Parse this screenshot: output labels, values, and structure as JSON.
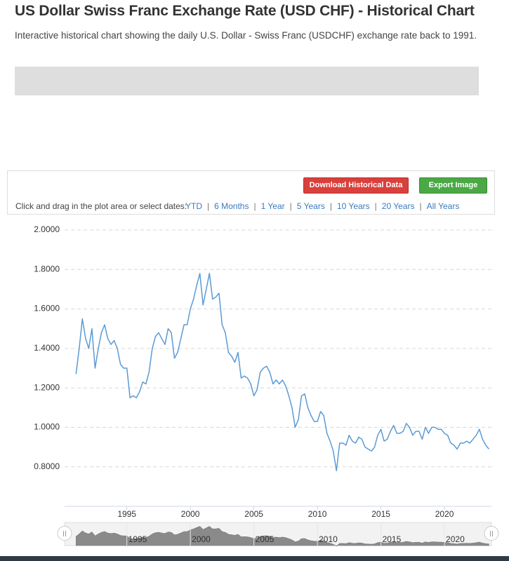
{
  "header": {
    "title": "US Dollar Swiss Franc Exchange Rate (USD CHF) - Historical Chart",
    "subtitle": "Interactive historical chart showing the daily U.S. Dollar - Swiss Franc (USDCHF) exchange rate back to 1991."
  },
  "toolbar": {
    "buttons": [
      "Download Historical Data",
      "Export Image"
    ],
    "prompt": "Click and drag in the plot area or select dates:",
    "ranges": [
      "YTD",
      "6 Months",
      "1 Year",
      "5 Years",
      "10 Years",
      "20 Years",
      "All Years"
    ]
  },
  "chart_data": {
    "type": "line",
    "color": "#5b9bd5",
    "grid": true,
    "xlim": [
      1990.1,
      2023.7
    ],
    "xticks": [
      1995,
      2000,
      2005,
      2010,
      2015,
      2020
    ],
    "ylim": [
      0.6,
      2.0
    ],
    "yticks": [
      {
        "value": 0.8,
        "label": "0.8000"
      },
      {
        "value": 1.0,
        "label": "1.0000"
      },
      {
        "value": 1.2,
        "label": "1.2000"
      },
      {
        "value": 1.4,
        "label": "1.4000"
      },
      {
        "value": 1.6,
        "label": "1.6000"
      },
      {
        "value": 1.8,
        "label": "1.8000"
      },
      {
        "value": 2.0,
        "label": "2.0000"
      }
    ],
    "x": [
      1991,
      1991.25,
      1991.5,
      1991.75,
      1992,
      1992.25,
      1992.5,
      1992.75,
      1993,
      1993.25,
      1993.5,
      1993.75,
      1994,
      1994.25,
      1994.5,
      1994.75,
      1995,
      1995.25,
      1995.5,
      1995.75,
      1996,
      1996.25,
      1996.5,
      1996.75,
      1997,
      1997.25,
      1997.5,
      1997.75,
      1998,
      1998.25,
      1998.5,
      1998.75,
      1999,
      1999.25,
      1999.5,
      1999.75,
      2000,
      2000.25,
      2000.5,
      2000.75,
      2001,
      2001.25,
      2001.5,
      2001.75,
      2002,
      2002.25,
      2002.5,
      2002.75,
      2003,
      2003.25,
      2003.5,
      2003.75,
      2004,
      2004.25,
      2004.5,
      2004.75,
      2005,
      2005.25,
      2005.5,
      2005.75,
      2006,
      2006.25,
      2006.5,
      2006.75,
      2007,
      2007.25,
      2007.5,
      2007.75,
      2008,
      2008.25,
      2008.5,
      2008.75,
      2009,
      2009.25,
      2009.5,
      2009.75,
      2010,
      2010.25,
      2010.5,
      2010.75,
      2011,
      2011.25,
      2011.5,
      2011.75,
      2012,
      2012.25,
      2012.5,
      2012.75,
      2013,
      2013.25,
      2013.5,
      2013.75,
      2014,
      2014.25,
      2014.5,
      2014.75,
      2015,
      2015.25,
      2015.5,
      2015.75,
      2016,
      2016.25,
      2016.5,
      2016.75,
      2017,
      2017.25,
      2017.5,
      2017.75,
      2018,
      2018.25,
      2018.5,
      2018.75,
      2019,
      2019.25,
      2019.5,
      2019.75,
      2020,
      2020.25,
      2020.5,
      2020.75,
      2021,
      2021.25,
      2021.5,
      2021.75,
      2022,
      2022.25,
      2022.5,
      2022.75,
      2023,
      2023.25,
      2023.5
    ],
    "values": [
      1.27,
      1.4,
      1.55,
      1.45,
      1.4,
      1.5,
      1.3,
      1.4,
      1.48,
      1.52,
      1.45,
      1.42,
      1.44,
      1.4,
      1.32,
      1.3,
      1.3,
      1.15,
      1.16,
      1.15,
      1.18,
      1.23,
      1.22,
      1.28,
      1.4,
      1.46,
      1.48,
      1.45,
      1.42,
      1.5,
      1.48,
      1.35,
      1.38,
      1.45,
      1.52,
      1.52,
      1.6,
      1.65,
      1.72,
      1.78,
      1.62,
      1.7,
      1.78,
      1.65,
      1.66,
      1.68,
      1.52,
      1.48,
      1.38,
      1.36,
      1.33,
      1.38,
      1.25,
      1.26,
      1.25,
      1.22,
      1.16,
      1.19,
      1.28,
      1.3,
      1.31,
      1.28,
      1.22,
      1.24,
      1.22,
      1.24,
      1.21,
      1.16,
      1.1,
      1.0,
      1.04,
      1.16,
      1.17,
      1.1,
      1.06,
      1.03,
      1.03,
      1.08,
      1.06,
      0.97,
      0.93,
      0.88,
      0.78,
      0.92,
      0.92,
      0.91,
      0.96,
      0.93,
      0.92,
      0.95,
      0.94,
      0.9,
      0.89,
      0.88,
      0.9,
      0.96,
      0.99,
      0.93,
      0.94,
      0.98,
      1.01,
      0.97,
      0.97,
      0.98,
      1.02,
      1.0,
      0.96,
      0.98,
      0.98,
      0.94,
      1.0,
      0.97,
      1.0,
      1.0,
      0.99,
      0.99,
      0.97,
      0.96,
      0.92,
      0.91,
      0.89,
      0.92,
      0.92,
      0.93,
      0.92,
      0.94,
      0.96,
      0.99,
      0.94,
      0.91,
      0.89
    ]
  }
}
